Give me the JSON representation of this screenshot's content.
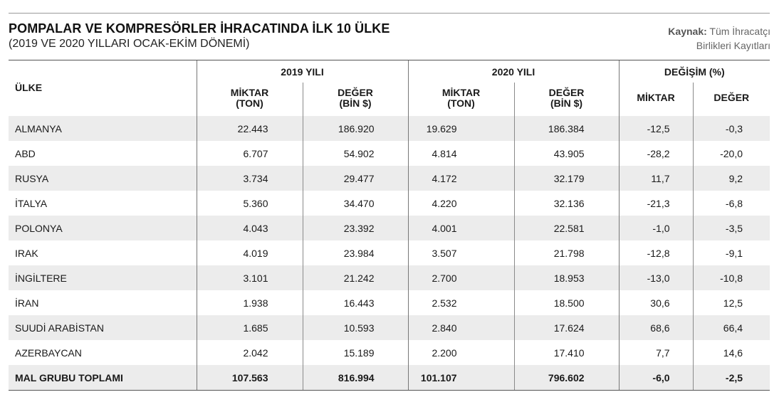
{
  "header": {
    "title": "POMPALAR VE KOMPRESÖRLER İHRACATINDA İLK 10 ÜLKE",
    "subtitle": "(2019 VE 2020 YILLARI OCAK-EKİM DÖNEMİ)",
    "source_label": "Kaynak:",
    "source_text_1": "Tüm İhracatçı",
    "source_text_2": "Birlikleri Kayıtları"
  },
  "table": {
    "country_header": "ÜLKE",
    "group_2019": "2019 YILI",
    "group_2020": "2020 YILI",
    "group_change": "DEĞİŞİM (%)",
    "sub_qty_1": "MİKTAR",
    "sub_qty_2": "(TON)",
    "sub_val_1": "DEĞER",
    "sub_val_2": "(BİN $)",
    "sub_change_qty": "MİKTAR",
    "sub_change_val": "DEĞER"
  },
  "chart_data": {
    "type": "table",
    "title": "POMPALAR VE KOMPRESÖRLER İHRACATINDA İLK 10 ÜLKE",
    "subtitle": "(2019 VE 2020 YILLARI OCAK-EKİM DÖNEMİ)",
    "rows": [
      {
        "country": "ALMANYA",
        "qty_2019": "22.443",
        "val_2019": "186.920",
        "qty_2020": "19.629",
        "val_2020": "186.384",
        "chg_qty": "-12,5",
        "chg_val": "-0,3"
      },
      {
        "country": "ABD",
        "qty_2019": "6.707",
        "val_2019": "54.902",
        "qty_2020": "4.814",
        "val_2020": "43.905",
        "chg_qty": "-28,2",
        "chg_val": "-20,0"
      },
      {
        "country": "RUSYA",
        "qty_2019": "3.734",
        "val_2019": "29.477",
        "qty_2020": "4.172",
        "val_2020": "32.179",
        "chg_qty": "11,7",
        "chg_val": "9,2"
      },
      {
        "country": "İTALYA",
        "qty_2019": "5.360",
        "val_2019": "34.470",
        "qty_2020": "4.220",
        "val_2020": "32.136",
        "chg_qty": "-21,3",
        "chg_val": "-6,8"
      },
      {
        "country": "POLONYA",
        "qty_2019": "4.043",
        "val_2019": "23.392",
        "qty_2020": "4.001",
        "val_2020": "22.581",
        "chg_qty": "-1,0",
        "chg_val": "-3,5"
      },
      {
        "country": "IRAK",
        "qty_2019": "4.019",
        "val_2019": "23.984",
        "qty_2020": "3.507",
        "val_2020": "21.798",
        "chg_qty": "-12,8",
        "chg_val": "-9,1"
      },
      {
        "country": "İNGİLTERE",
        "qty_2019": "3.101",
        "val_2019": "21.242",
        "qty_2020": "2.700",
        "val_2020": "18.953",
        "chg_qty": "-13,0",
        "chg_val": "-10,8"
      },
      {
        "country": "İRAN",
        "qty_2019": "1.938",
        "val_2019": "16.443",
        "qty_2020": "2.532",
        "val_2020": "18.500",
        "chg_qty": "30,6",
        "chg_val": "12,5"
      },
      {
        "country": "SUUDİ ARABİSTAN",
        "qty_2019": "1.685",
        "val_2019": "10.593",
        "qty_2020": "2.840",
        "val_2020": "17.624",
        "chg_qty": "68,6",
        "chg_val": "66,4"
      },
      {
        "country": "AZERBAYCAN",
        "qty_2019": "2.042",
        "val_2019": "15.189",
        "qty_2020": "2.200",
        "val_2020": "17.410",
        "chg_qty": "7,7",
        "chg_val": "14,6"
      }
    ],
    "total": {
      "country": "MAL GRUBU TOPLAMI",
      "qty_2019": "107.563",
      "val_2019": "816.994",
      "qty_2020": "101.107",
      "val_2020": "796.602",
      "chg_qty": "-6,0",
      "chg_val": "-2,5"
    }
  },
  "colors": {
    "row_shade": "#ececec",
    "text": "#1a1a1a",
    "source_text": "#666666"
  }
}
